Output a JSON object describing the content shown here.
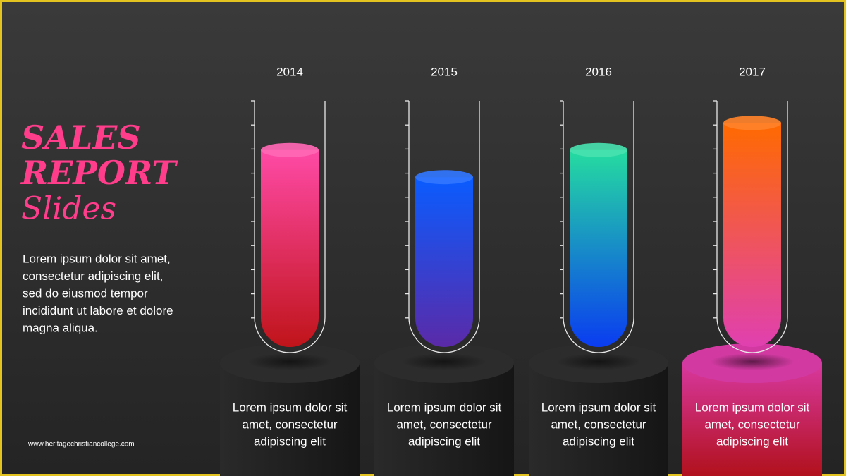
{
  "chart_data": {
    "type": "bar",
    "style": "test-tube",
    "title": [
      "SALES",
      "REPORT"
    ],
    "subtitle": "Slides",
    "categories": [
      "2014",
      "2015",
      "2016",
      "2017"
    ],
    "values": [
      80,
      69,
      80,
      91
    ],
    "ylim": [
      0,
      100
    ],
    "colors": [
      [
        "#ff4aa6",
        "#c0141a"
      ],
      [
        "#0a5cff",
        "#5a2aa8"
      ],
      [
        "#25dca0",
        "#0a3cf0"
      ],
      [
        "#ff6a00",
        "#e040b0"
      ]
    ],
    "highlight": 3,
    "captions": [
      [
        "Lorem ipsum dolor sit",
        "amet, consectetur",
        "adipiscing elit"
      ],
      [
        "Lorem ipsum dolor sit",
        "amet, consectetur",
        "adipiscing elit"
      ],
      [
        "Lorem ipsum dolor sit",
        "amet, consectetur",
        "adipiscing elit"
      ],
      [
        "Lorem ipsum dolor sit",
        "amet, consectetur",
        "adipiscing elit"
      ]
    ]
  },
  "description": [
    "Lorem ipsum dolor sit amet,",
    "consectetur adipiscing elit,",
    "sed do eiusmod tempor",
    "incididunt ut labore et dolore",
    "magna aliqua."
  ],
  "footer": "www.heritagechristiancollege.com"
}
